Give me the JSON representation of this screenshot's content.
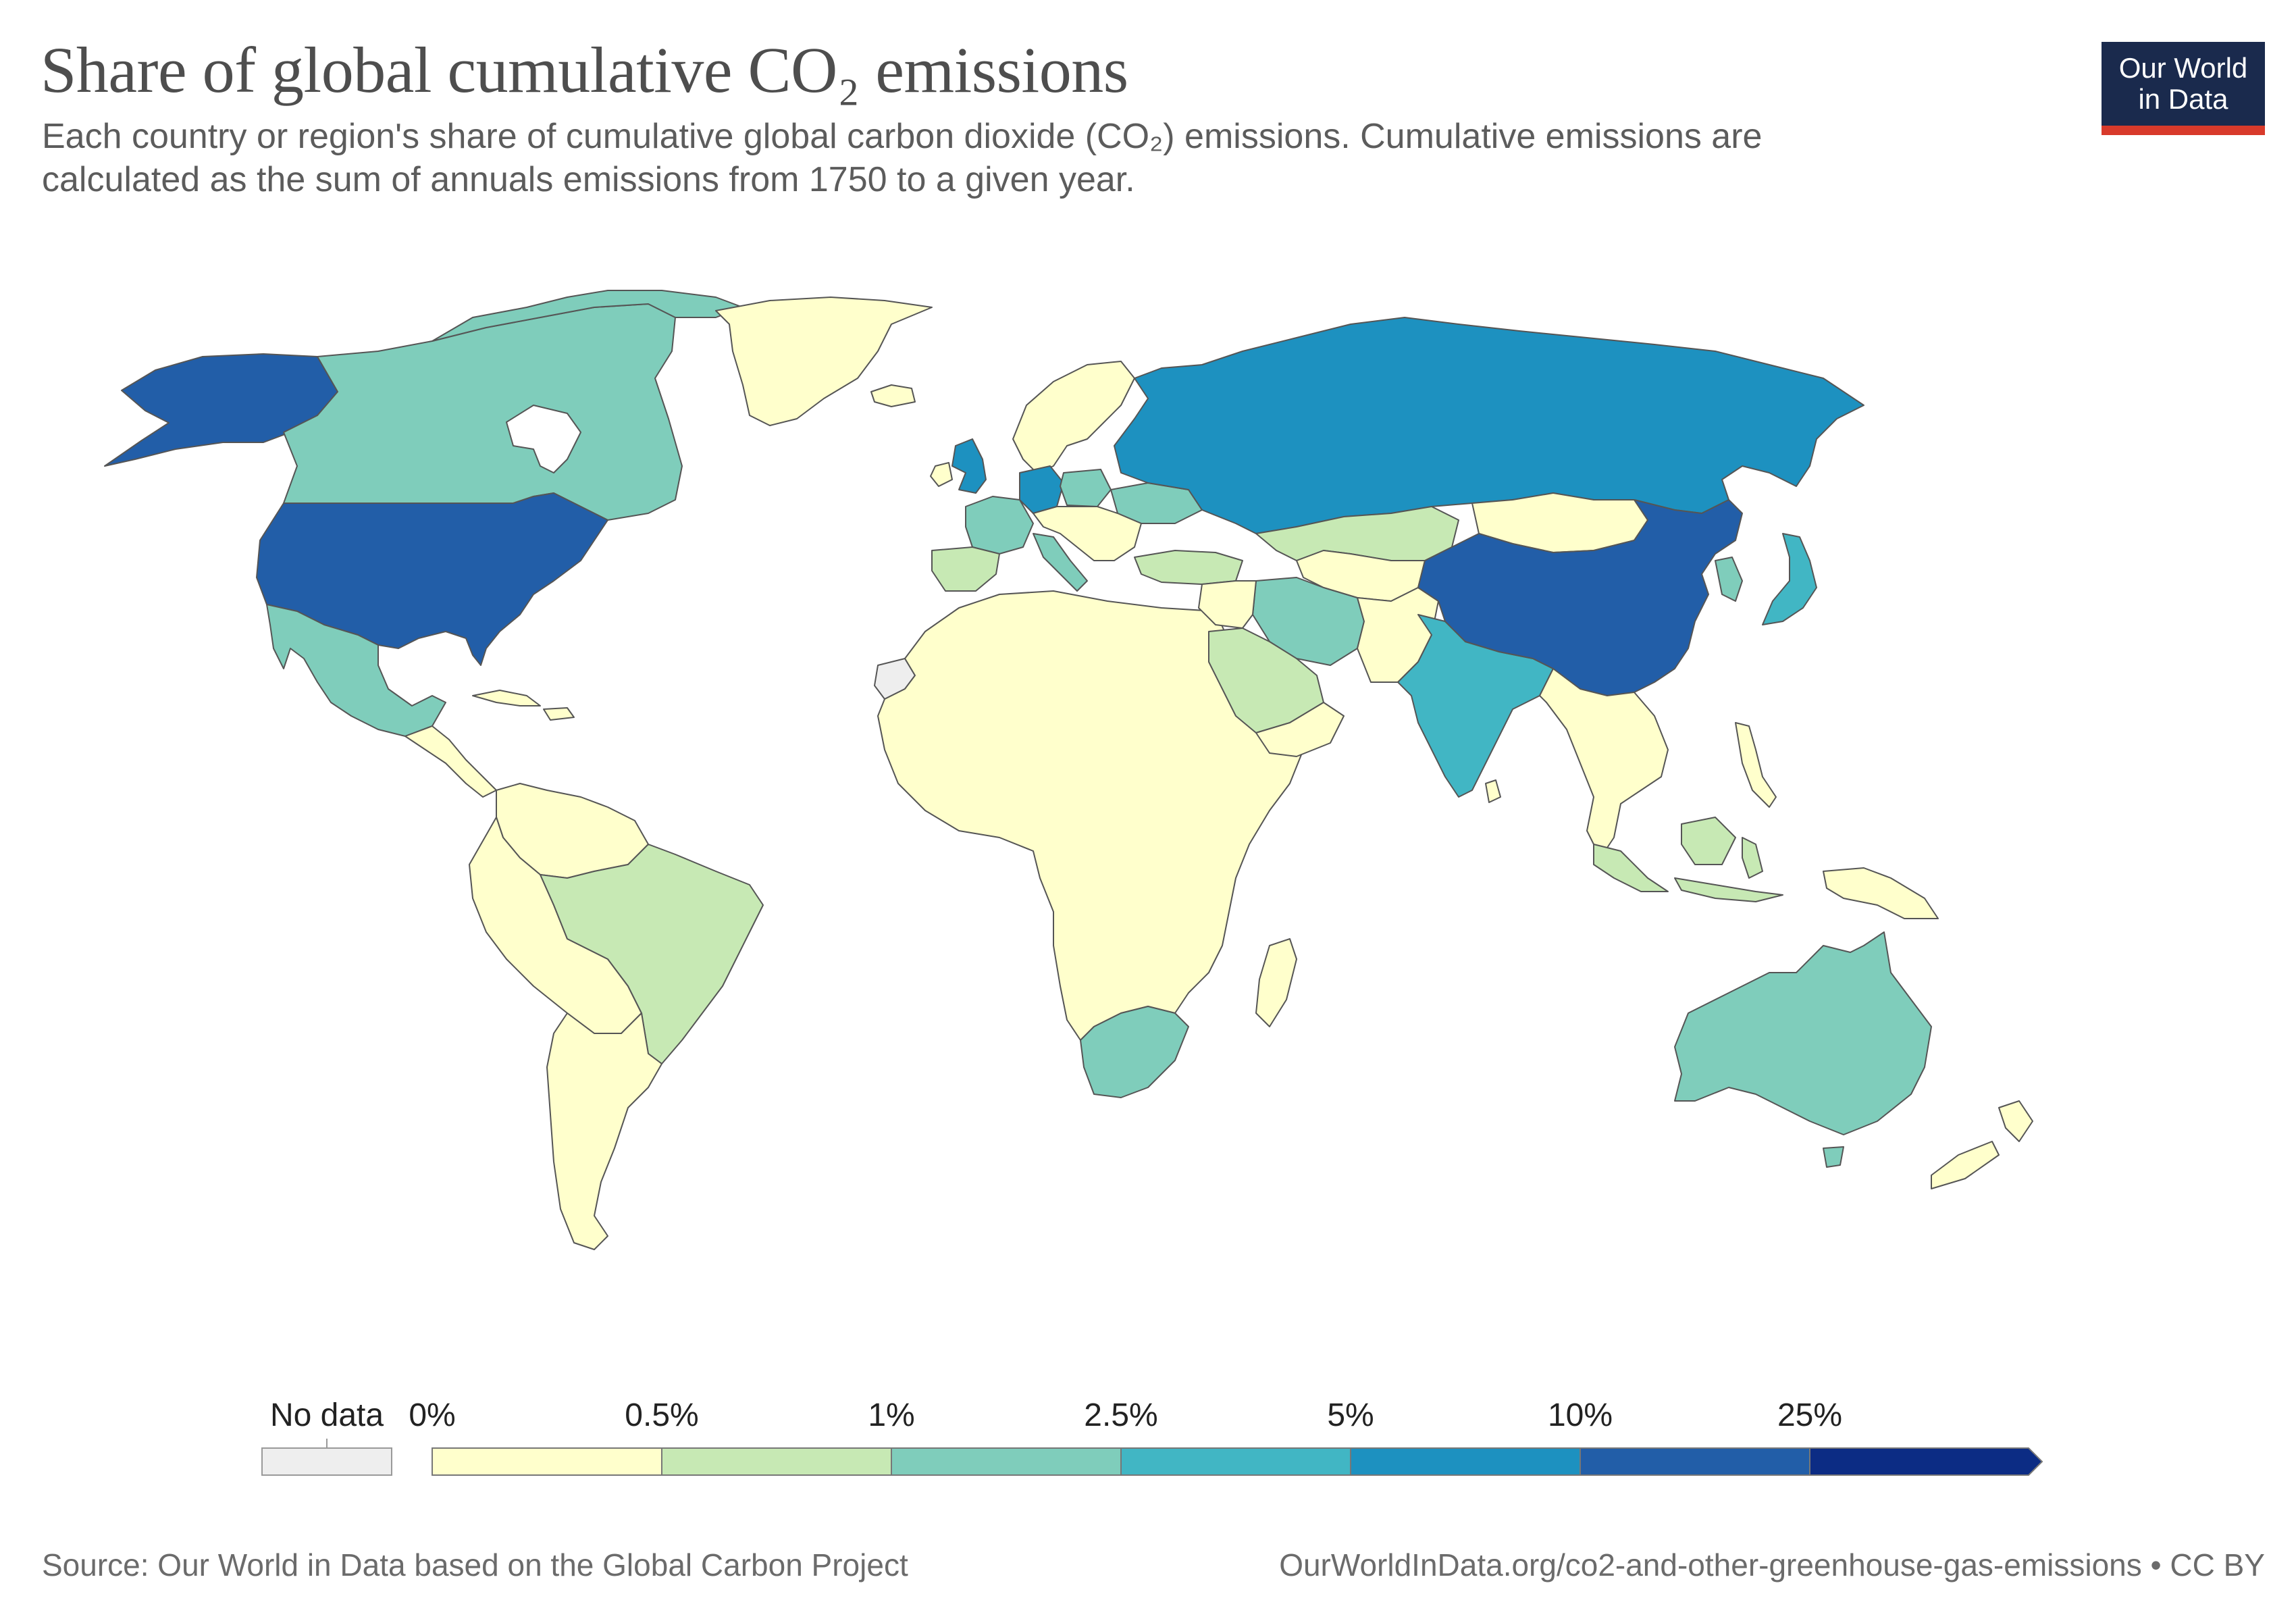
{
  "header": {
    "title": "Share of global cumulative CO₂ emissions",
    "subtitle_line1": "Each country or region's share of cumulative global carbon dioxide (CO₂) emissions. Cumulative emissions are",
    "subtitle_line2": "calculated as the sum of annuals emissions from 1750 to a given year."
  },
  "logo": {
    "line1": "Our World",
    "line2": "in Data"
  },
  "legend": {
    "no_data_label": "No data",
    "no_data_color": "#eeeeee",
    "bins": [
      {
        "label": "0%",
        "color": "#ffffcc"
      },
      {
        "label": "0.5%",
        "color": "#c7e9b4"
      },
      {
        "label": "1%",
        "color": "#7fcdbb"
      },
      {
        "label": "2.5%",
        "color": "#41b6c4"
      },
      {
        "label": "5%",
        "color": "#1d91c0"
      },
      {
        "label": "10%",
        "color": "#225ea8"
      },
      {
        "label": "25%",
        "color": "#0c2c84"
      }
    ]
  },
  "colors": {
    "bin_0": "#ffffcc",
    "bin_05": "#c7e9b4",
    "bin_1": "#7fcdbb",
    "bin_25": "#41b6c4",
    "bin_5": "#1d91c0",
    "bin_10": "#225ea8",
    "bin_25p": "#0c2c84",
    "no_data": "#eeeeee",
    "border": "#555555"
  },
  "footer": {
    "source": "Source: Our World in Data based on the Global Carbon Project",
    "url": "OurWorldInData.org/co2-and-other-greenhouse-gas-emissions • CC BY"
  }
}
